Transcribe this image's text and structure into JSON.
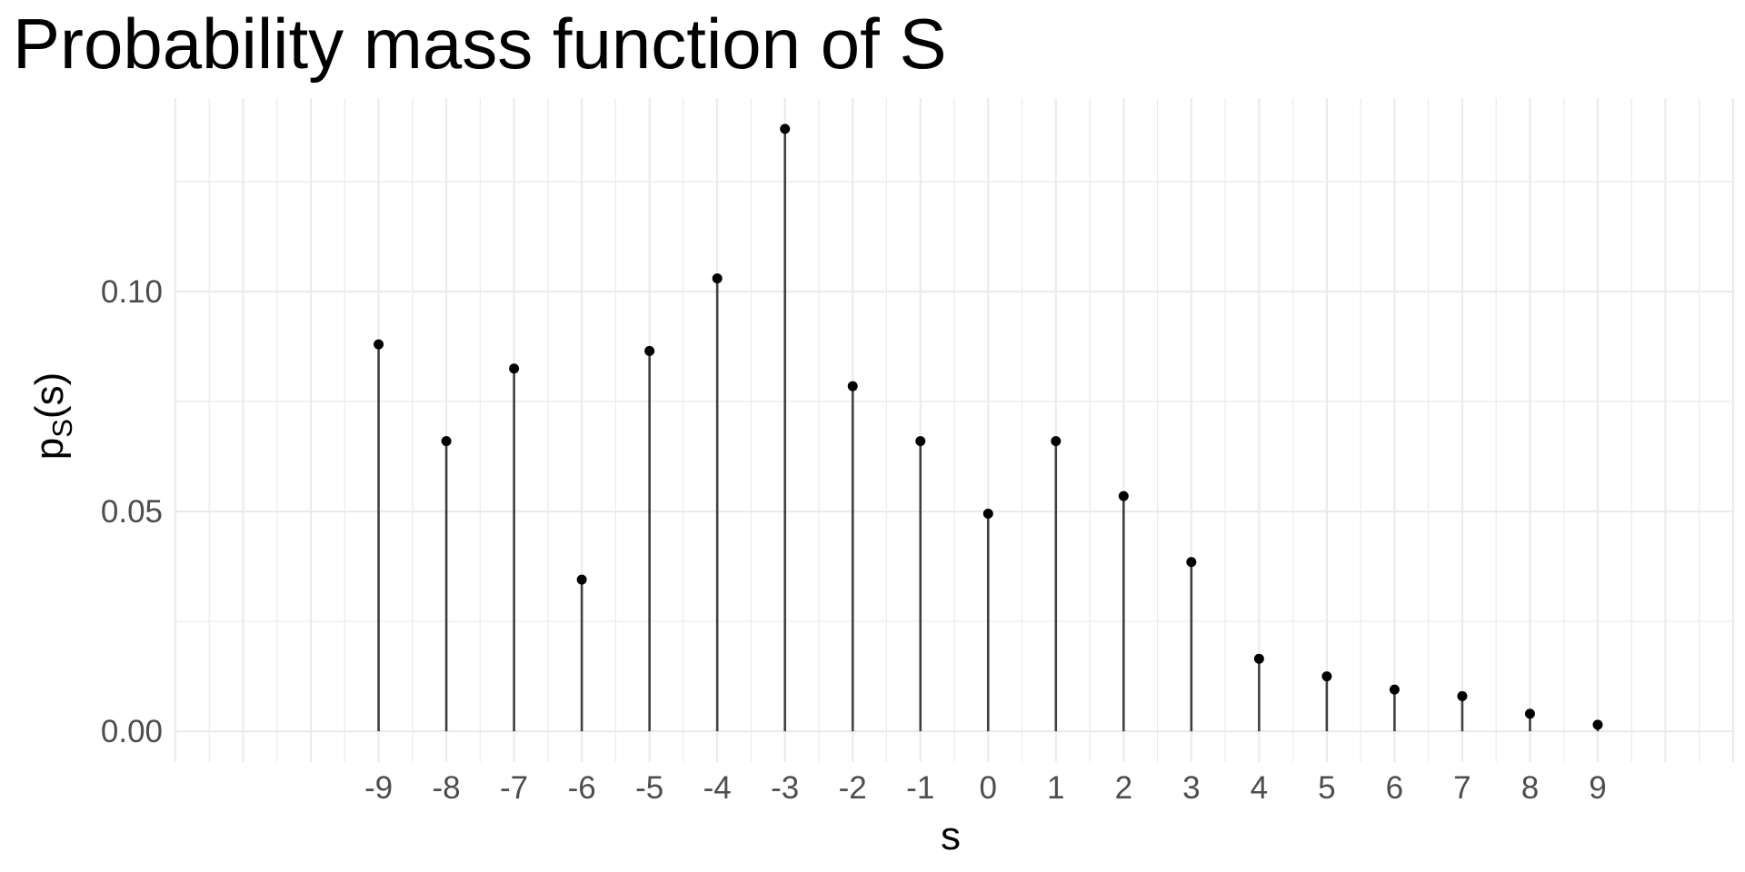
{
  "chart_data": {
    "type": "lollipop",
    "title": "Probability mass function of S",
    "xlabel": "s",
    "ylabel": {
      "main": "p",
      "subscript": "S",
      "suffix": "(s)"
    },
    "x": [
      -9,
      -8,
      -7,
      -6,
      -5,
      -4,
      -3,
      -2,
      -1,
      0,
      1,
      2,
      3,
      4,
      5,
      6,
      7,
      8,
      9
    ],
    "values": [
      0.088,
      0.066,
      0.0825,
      0.0345,
      0.0865,
      0.103,
      0.137,
      0.0785,
      0.066,
      0.0495,
      0.066,
      0.0535,
      0.0385,
      0.0165,
      0.0125,
      0.0095,
      0.008,
      0.004,
      0.0015
    ],
    "x_tick_labels": [
      "-9",
      "-8",
      "-7",
      "-6",
      "-5",
      "-4",
      "-3",
      "-2",
      "-1",
      "0",
      "1",
      "2",
      "3",
      "4",
      "5",
      "6",
      "7",
      "8",
      "9"
    ],
    "y_ticks": [
      0.0,
      0.05,
      0.1
    ],
    "y_tick_labels": [
      "0.00",
      "0.05",
      "0.10"
    ],
    "xlim": [
      -12,
      11
    ],
    "ylim": [
      -0.007,
      0.144
    ],
    "grid": true,
    "colors": {
      "stem": "#404040",
      "point": "#000000",
      "grid": "#ebebeb",
      "background": "#ffffff"
    }
  }
}
